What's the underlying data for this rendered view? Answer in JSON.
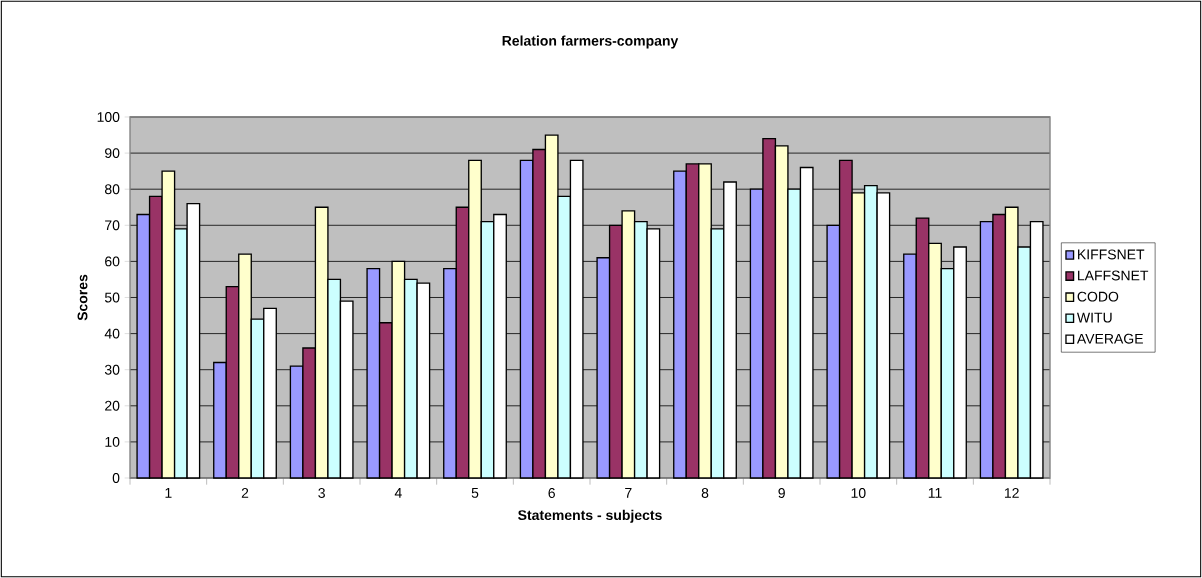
{
  "chart_data": {
    "type": "bar",
    "title": "Relation farmers-company",
    "xlabel": "Statements - subjects",
    "ylabel": "Scores",
    "categories": [
      "1",
      "2",
      "3",
      "4",
      "5",
      "6",
      "7",
      "8",
      "9",
      "10",
      "11",
      "12"
    ],
    "series": [
      {
        "name": "KIFFSNET",
        "color": "#9999ff",
        "values": [
          73,
          32,
          31,
          58,
          58,
          88,
          61,
          85,
          80,
          70,
          62,
          71
        ]
      },
      {
        "name": "LAFFSNET",
        "color": "#993366",
        "values": [
          78,
          53,
          36,
          43,
          75,
          91,
          70,
          87,
          94,
          88,
          72,
          73
        ]
      },
      {
        "name": "CODO",
        "color": "#ffffcc",
        "values": [
          85,
          62,
          75,
          60,
          88,
          95,
          74,
          87,
          92,
          79,
          65,
          75
        ]
      },
      {
        "name": "WITU",
        "color": "#ccffff",
        "values": [
          69,
          44,
          55,
          55,
          71,
          78,
          71,
          69,
          80,
          81,
          58,
          64
        ]
      },
      {
        "name": "AVERAGE",
        "color": "#ffffff",
        "values": [
          76,
          47,
          49,
          54,
          73,
          88,
          69,
          82,
          86,
          79,
          64,
          71
        ]
      }
    ],
    "ylim": [
      0,
      100
    ],
    "yticks": [
      0,
      10,
      20,
      30,
      40,
      50,
      60,
      70,
      80,
      90,
      100
    ],
    "grid": "y",
    "legend": "right"
  }
}
